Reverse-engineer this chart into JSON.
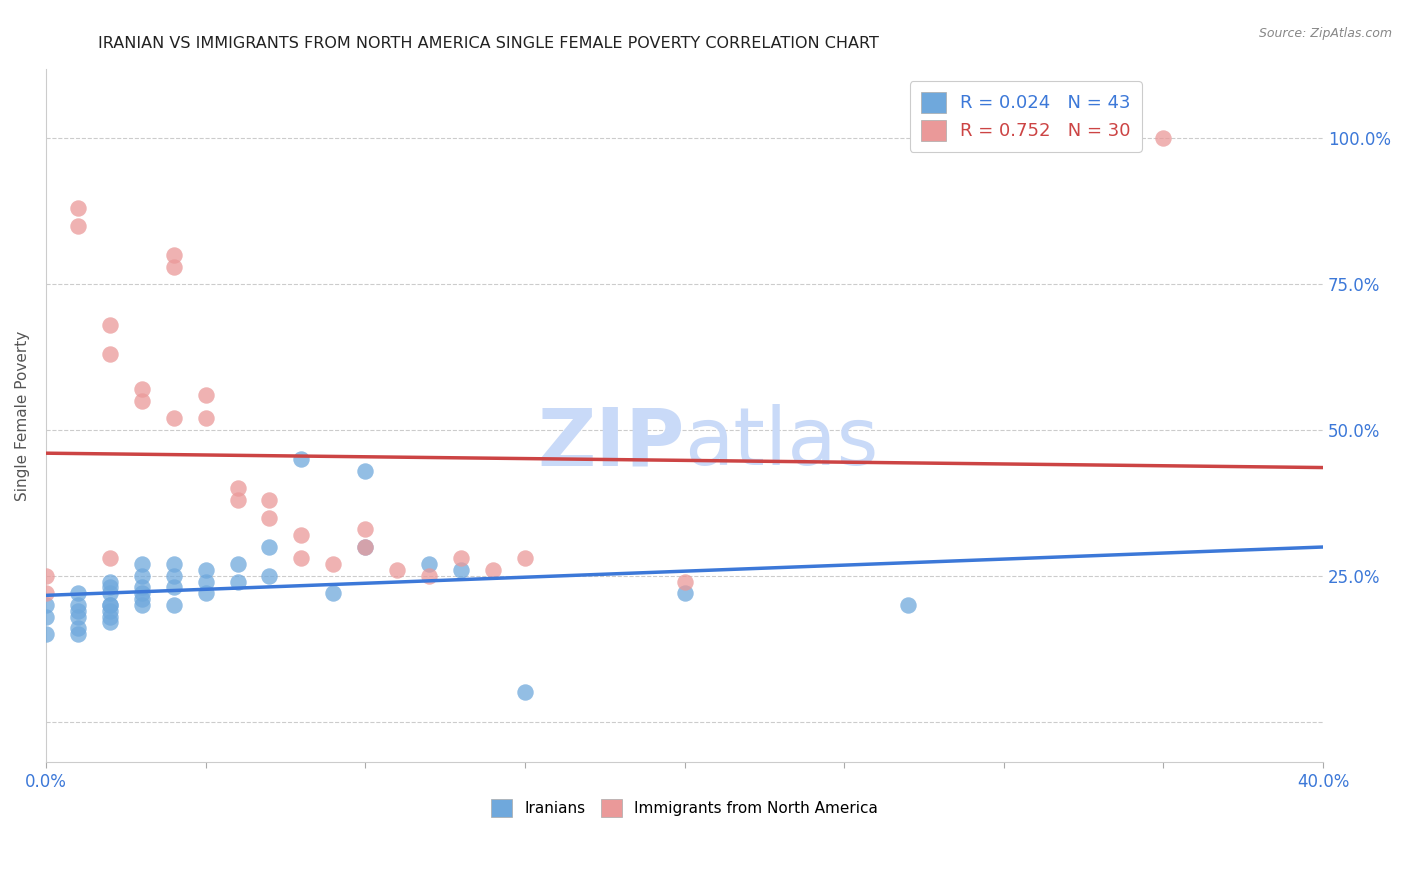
{
  "title": "IRANIAN VS IMMIGRANTS FROM NORTH AMERICA SINGLE FEMALE POVERTY CORRELATION CHART",
  "source": "Source: ZipAtlas.com",
  "ylabel": "Single Female Poverty",
  "xlim": [
    0.0,
    0.4
  ],
  "ylim": [
    -0.07,
    1.12
  ],
  "blue_R": 0.024,
  "blue_N": 43,
  "pink_R": 0.752,
  "pink_N": 30,
  "blue_color": "#6fa8dc",
  "pink_color": "#ea9999",
  "blue_line_color": "#3c78d8",
  "pink_line_color": "#cc4444",
  "watermark_zip": "ZIP",
  "watermark_atlas": "atlas",
  "watermark_color": "#c9daf8",
  "legend_label_blue": "Iranians",
  "legend_label_pink": "Immigrants from North America",
  "iranians_x": [
    0.0,
    0.0,
    0.0,
    0.01,
    0.01,
    0.01,
    0.01,
    0.01,
    0.01,
    0.02,
    0.02,
    0.02,
    0.02,
    0.02,
    0.02,
    0.02,
    0.02,
    0.03,
    0.03,
    0.03,
    0.03,
    0.03,
    0.03,
    0.04,
    0.04,
    0.04,
    0.04,
    0.05,
    0.05,
    0.05,
    0.06,
    0.06,
    0.07,
    0.07,
    0.08,
    0.09,
    0.1,
    0.1,
    0.12,
    0.13,
    0.15,
    0.2,
    0.27
  ],
  "iranians_y": [
    0.2,
    0.18,
    0.15,
    0.2,
    0.18,
    0.22,
    0.16,
    0.15,
    0.19,
    0.2,
    0.22,
    0.18,
    0.23,
    0.2,
    0.24,
    0.19,
    0.17,
    0.2,
    0.21,
    0.22,
    0.25,
    0.23,
    0.27,
    0.2,
    0.23,
    0.27,
    0.25,
    0.22,
    0.24,
    0.26,
    0.24,
    0.27,
    0.25,
    0.3,
    0.45,
    0.22,
    0.43,
    0.3,
    0.27,
    0.26,
    0.05,
    0.22,
    0.2
  ],
  "northam_x": [
    0.0,
    0.0,
    0.01,
    0.01,
    0.02,
    0.02,
    0.02,
    0.03,
    0.03,
    0.04,
    0.04,
    0.04,
    0.05,
    0.05,
    0.06,
    0.06,
    0.07,
    0.07,
    0.08,
    0.08,
    0.09,
    0.1,
    0.1,
    0.11,
    0.12,
    0.13,
    0.14,
    0.15,
    0.2,
    0.35
  ],
  "northam_y": [
    0.25,
    0.22,
    0.85,
    0.88,
    0.63,
    0.68,
    0.28,
    0.55,
    0.57,
    0.78,
    0.8,
    0.52,
    0.52,
    0.56,
    0.38,
    0.4,
    0.35,
    0.38,
    0.28,
    0.32,
    0.27,
    0.3,
    0.33,
    0.26,
    0.25,
    0.28,
    0.26,
    0.28,
    0.24,
    1.0
  ]
}
